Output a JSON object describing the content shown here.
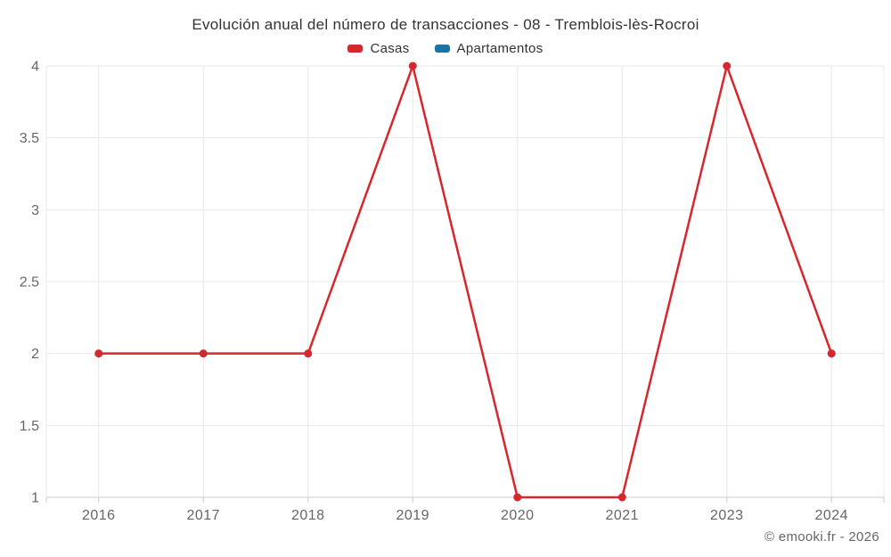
{
  "header": {
    "title": "Evolución anual del número de transacciones - 08 - Tremblois-lès-Rocroi"
  },
  "legend": {
    "items": [
      {
        "label": "Casas",
        "color": "#d7262c"
      },
      {
        "label": "Apartamentos",
        "color": "#1c74a3"
      }
    ]
  },
  "footer": {
    "copyright": "© emooki.fr - 2026"
  },
  "chart_data": {
    "type": "line",
    "title": "Evolución anual del número de transacciones - 08 - Tremblois-lès-Rocroi",
    "categories": [
      "2016",
      "2017",
      "2018",
      "2019",
      "2020",
      "2021",
      "2023",
      "2024"
    ],
    "series": [
      {
        "name": "Casas",
        "color": "#d7262c",
        "values": [
          2,
          2,
          2,
          4,
          1,
          1,
          4,
          2
        ]
      },
      {
        "name": "Apartamentos",
        "color": "#1c74a3",
        "values": []
      }
    ],
    "xlabel": "",
    "ylabel": "",
    "ylim": [
      1,
      4
    ],
    "yticks": [
      1,
      1.5,
      2,
      2.5,
      3,
      3.5,
      4
    ],
    "grid": true,
    "legend_position": "top",
    "marker_radius": 4.5,
    "line_width": 2.5,
    "colors": {
      "grid": "#e8e8e8",
      "axis": "#cccccc",
      "tick_label": "#666666",
      "title": "#333333"
    }
  }
}
